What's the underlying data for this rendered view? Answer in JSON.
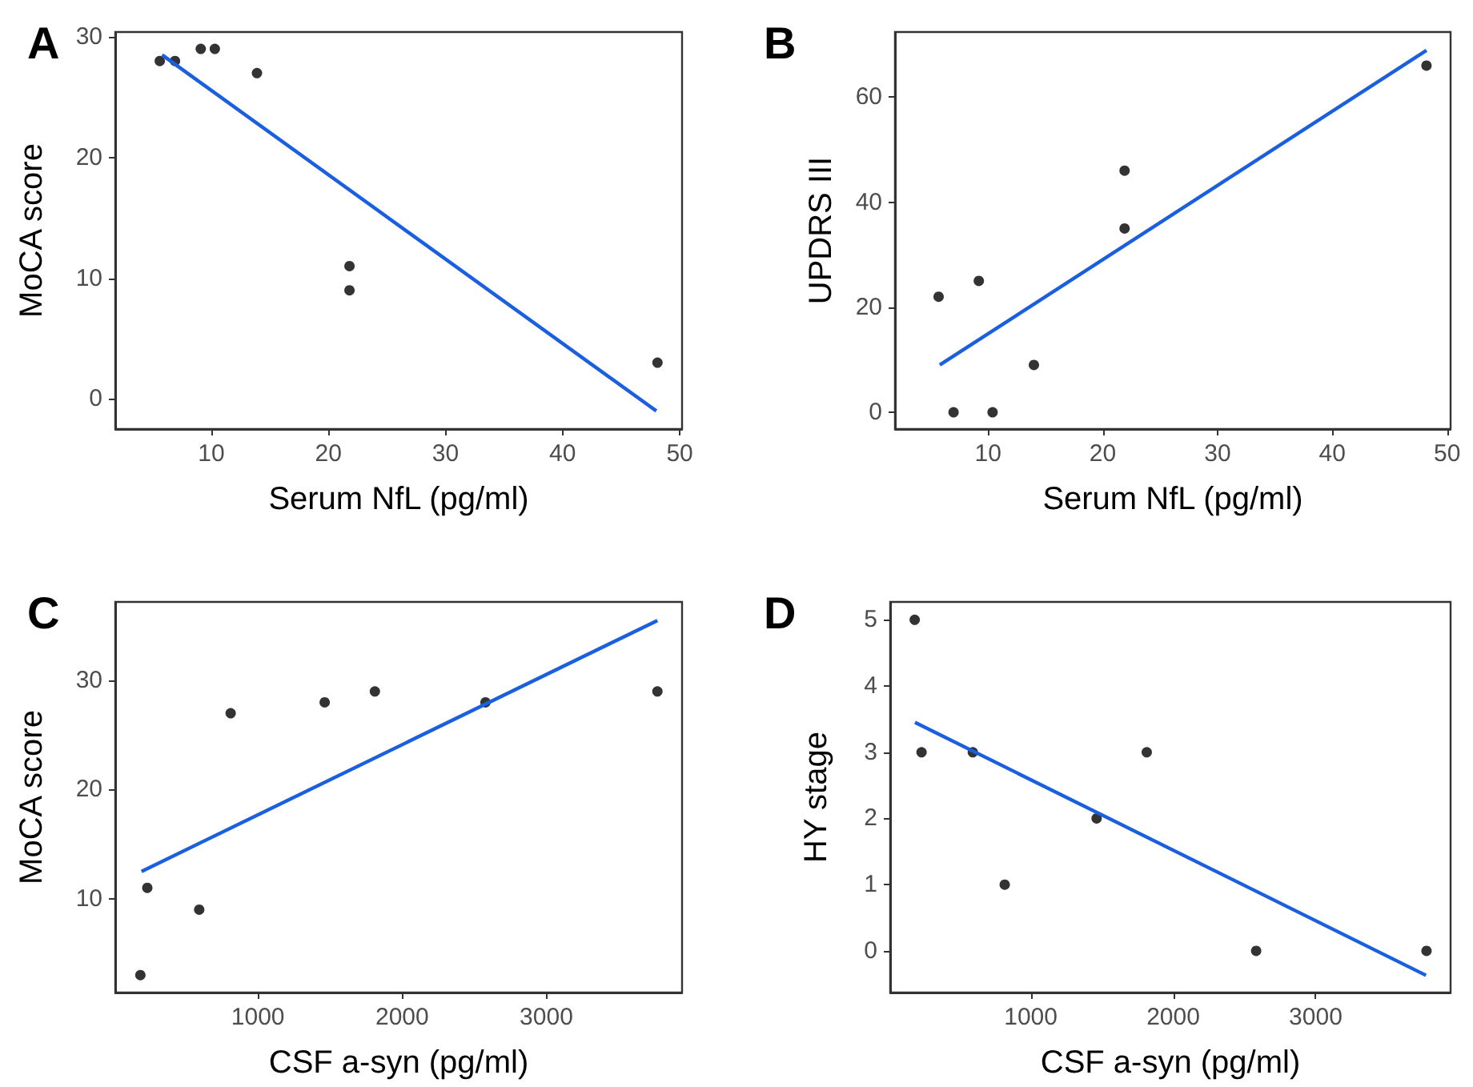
{
  "chart_data": [
    {
      "type": "scatter",
      "title": "A",
      "xlabel": "Serum NfL (pg/ml)",
      "ylabel": "MoCA score",
      "xlim": [
        1.8,
        50.2
      ],
      "xticks": [
        10,
        20,
        30,
        40,
        50
      ],
      "ylim": [
        -2.5,
        30.4
      ],
      "yticks": [
        0,
        10,
        20,
        30
      ],
      "grid": false,
      "series": [
        {
          "color": "#000000",
          "marker": "circle",
          "x": [
            5.6,
            6.9,
            9.1,
            10.3,
            13.9,
            21.8,
            21.8,
            48.1
          ],
          "values": [
            28,
            28,
            29,
            29,
            27,
            11,
            9,
            3
          ]
        },
        {
          "type": "line",
          "marker": "none",
          "color": "#1a5fe0",
          "x": [
            5.8,
            48.0
          ],
          "values": [
            28.5,
            -1.0
          ]
        }
      ]
    },
    {
      "type": "scatter",
      "title": "B",
      "xlabel": "Serum NfL (pg/ml)",
      "ylabel": "UPDRS III",
      "xlim": [
        1.9,
        50.3
      ],
      "xticks": [
        10,
        20,
        30,
        40,
        50
      ],
      "ylim": [
        -3.2,
        72.4
      ],
      "yticks": [
        0,
        20,
        40,
        60
      ],
      "grid": false,
      "series": [
        {
          "color": "#000000",
          "marker": "circle",
          "x": [
            5.7,
            7.0,
            9.2,
            10.4,
            14.0,
            21.9,
            21.9,
            48.2
          ],
          "values": [
            22,
            0,
            25,
            0,
            9,
            46,
            35,
            66
          ]
        },
        {
          "type": "line",
          "marker": "none",
          "color": "#1a5fe0",
          "x": [
            5.8,
            48.2
          ],
          "values": [
            9.0,
            68.9
          ]
        }
      ]
    },
    {
      "type": "scatter",
      "title": "C",
      "xlabel": "CSF a-syn (pg/ml)",
      "ylabel": "MoCA score",
      "xlim": [
        11,
        3941
      ],
      "xticks": [
        1000,
        2000,
        3000
      ],
      "ylim": [
        1.4,
        37.2
      ],
      "yticks": [
        10,
        20,
        30
      ],
      "grid": false,
      "series": [
        {
          "color": "#000000",
          "marker": "circle",
          "x": [
            185,
            233,
            593,
            811,
            1463,
            1811,
            2578,
            3770
          ],
          "values": [
            3,
            11,
            9,
            27,
            28,
            29,
            28,
            29
          ]
        },
        {
          "type": "line",
          "marker": "none",
          "color": "#1a5fe0",
          "x": [
            193,
            3770
          ],
          "values": [
            12.5,
            35.5
          ]
        }
      ]
    },
    {
      "type": "scatter",
      "title": "D",
      "xlabel": "CSF a-syn (pg/ml)",
      "ylabel": "HY stage",
      "xlim": [
        13,
        3947
      ],
      "xticks": [
        1000,
        2000,
        3000
      ],
      "ylim": [
        -0.63,
        5.27
      ],
      "yticks": [
        0,
        1,
        2,
        3,
        4,
        5
      ],
      "grid": false,
      "series": [
        {
          "color": "#000000",
          "marker": "circle",
          "x": [
            185,
            233,
            593,
            817,
            1462,
            1814,
            2582,
            3778
          ],
          "values": [
            5,
            3,
            3,
            1,
            2,
            3,
            0,
            0
          ]
        },
        {
          "type": "line",
          "marker": "none",
          "color": "#1a5fe0",
          "x": [
            187,
            3774
          ],
          "values": [
            3.45,
            -0.37
          ]
        }
      ]
    }
  ]
}
